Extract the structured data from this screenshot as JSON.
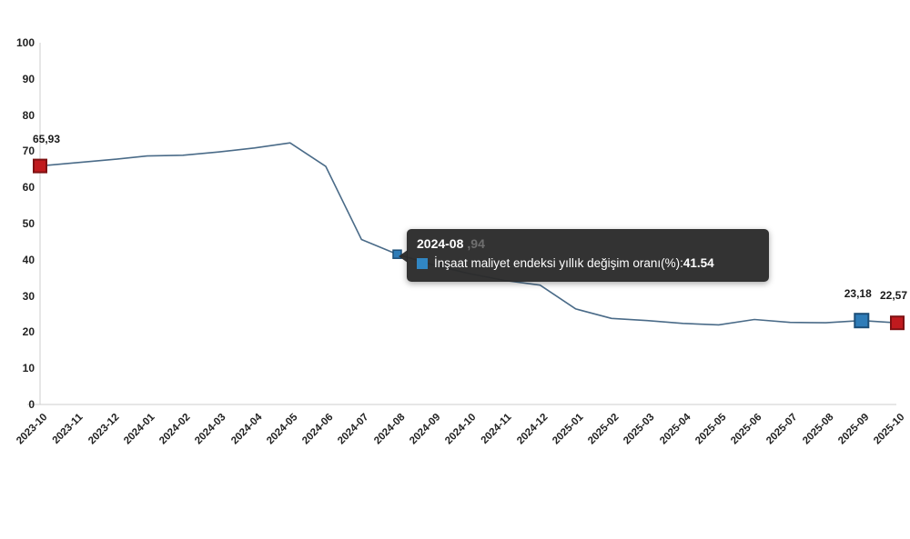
{
  "chart_data": {
    "type": "line",
    "title": "",
    "xlabel": "",
    "ylabel": "",
    "ylim": [
      0,
      100
    ],
    "ytick_step": 10,
    "grid": false,
    "legend_position": "none",
    "x": [
      "2023-10",
      "2023-11",
      "2023-12",
      "2024-01",
      "2024-02",
      "2024-03",
      "2024-04",
      "2024-05",
      "2024-06",
      "2024-07",
      "2024-08",
      "2024-09",
      "2024-10",
      "2024-11",
      "2024-12",
      "2025-01",
      "2025-02",
      "2025-03",
      "2025-04",
      "2025-05",
      "2025-06",
      "2025-07",
      "2025-08",
      "2025-09",
      "2025-10"
    ],
    "series": [
      {
        "name": "İnşaat maliyet endeksi yıllık değişim oranı(%)",
        "values": [
          65.93,
          66.8,
          67.7,
          68.7,
          68.9,
          69.8,
          70.9,
          72.3,
          65.8,
          45.6,
          41.54,
          38.6,
          36.2,
          34.3,
          33.0,
          26.4,
          23.8,
          23.2,
          22.4,
          22.0,
          23.5,
          22.7,
          22.6,
          23.18,
          22.57
        ]
      }
    ]
  },
  "point_labels": [
    {
      "x": "2023-10",
      "text": "65,93"
    },
    {
      "x": "2025-09",
      "text": "23,18"
    },
    {
      "x": "2025-10",
      "text": "22,57"
    }
  ],
  "markers": [
    {
      "x": "2023-10",
      "value": 65.93,
      "color": "red",
      "size": 14
    },
    {
      "x": "2024-08",
      "value": 41.54,
      "color": "blue",
      "size": 9
    },
    {
      "x": "2025-09",
      "value": 23.18,
      "color": "blue",
      "size": 15
    },
    {
      "x": "2025-10",
      "value": 22.57,
      "color": "red",
      "size": 14
    }
  ],
  "tooltip": {
    "header": "2024-08",
    "occluded_fragment": ",94",
    "series_label": "İnşaat maliyet endeksi yıllık değişim oranı(%): ",
    "value": "41.54"
  },
  "colors": {
    "line": "#4a6b88",
    "marker_red": "#c01a1e",
    "marker_red_border": "#7e1113",
    "marker_blue": "#2e7cb8",
    "marker_blue_border": "#1c4e78",
    "axis": "#cccccc",
    "tick_text": "#222222",
    "tooltip_swatch": "#3186c2"
  }
}
